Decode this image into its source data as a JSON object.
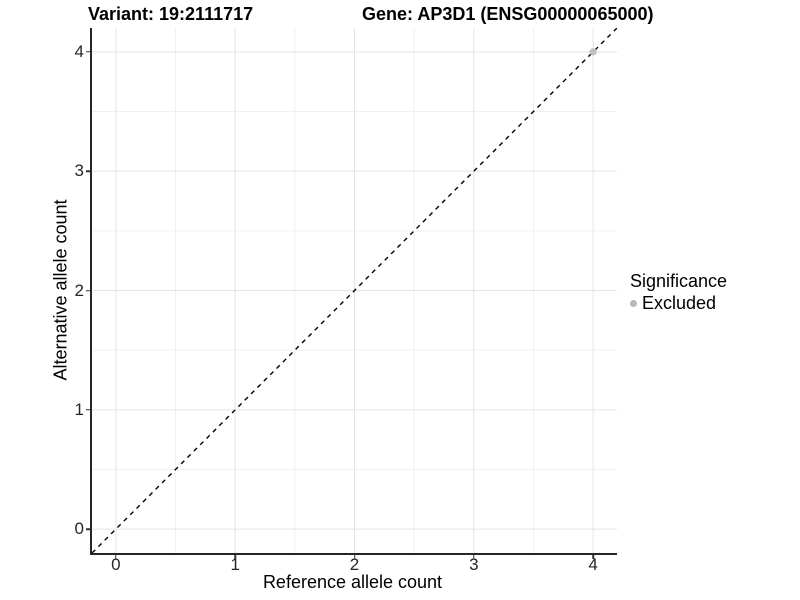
{
  "titles": {
    "left": "Variant: 19:2111717",
    "right": "Gene: AP3D1 (ENSG00000065000)"
  },
  "chart_data": {
    "type": "scatter",
    "title_left": "Variant: 19:2111717",
    "title_right": "Gene: AP3D1 (ENSG00000065000)",
    "xlabel": "Reference allele count",
    "ylabel": "Alternative allele count",
    "xlim": [
      -0.2,
      4.2
    ],
    "ylim": [
      -0.2,
      4.2
    ],
    "x_ticks": [
      0,
      1,
      2,
      3,
      4
    ],
    "y_ticks": [
      0,
      1,
      2,
      3,
      4
    ],
    "minor_ticks": [
      0.5,
      1.5,
      2.5,
      3.5
    ],
    "grid": "major and minor, light gray, on white background",
    "reference_line": {
      "kind": "identity y=x",
      "style": "dashed",
      "color": "#000000"
    },
    "series": [
      {
        "name": "Excluded",
        "color": "#c0c0c0",
        "points": [
          {
            "x": 4,
            "y": 4
          }
        ]
      }
    ],
    "legend": {
      "position": "right",
      "title": "Significance",
      "items": [
        {
          "label": "Excluded",
          "color": "#b8b8b8"
        }
      ]
    }
  },
  "colors": {
    "axis_line": "#262626",
    "tick_mark": "#333333",
    "grid_major": "#e4e4e4",
    "grid_minor": "#f0f0f0",
    "point": "#c0c0c0",
    "dashed_line": "#000000"
  }
}
